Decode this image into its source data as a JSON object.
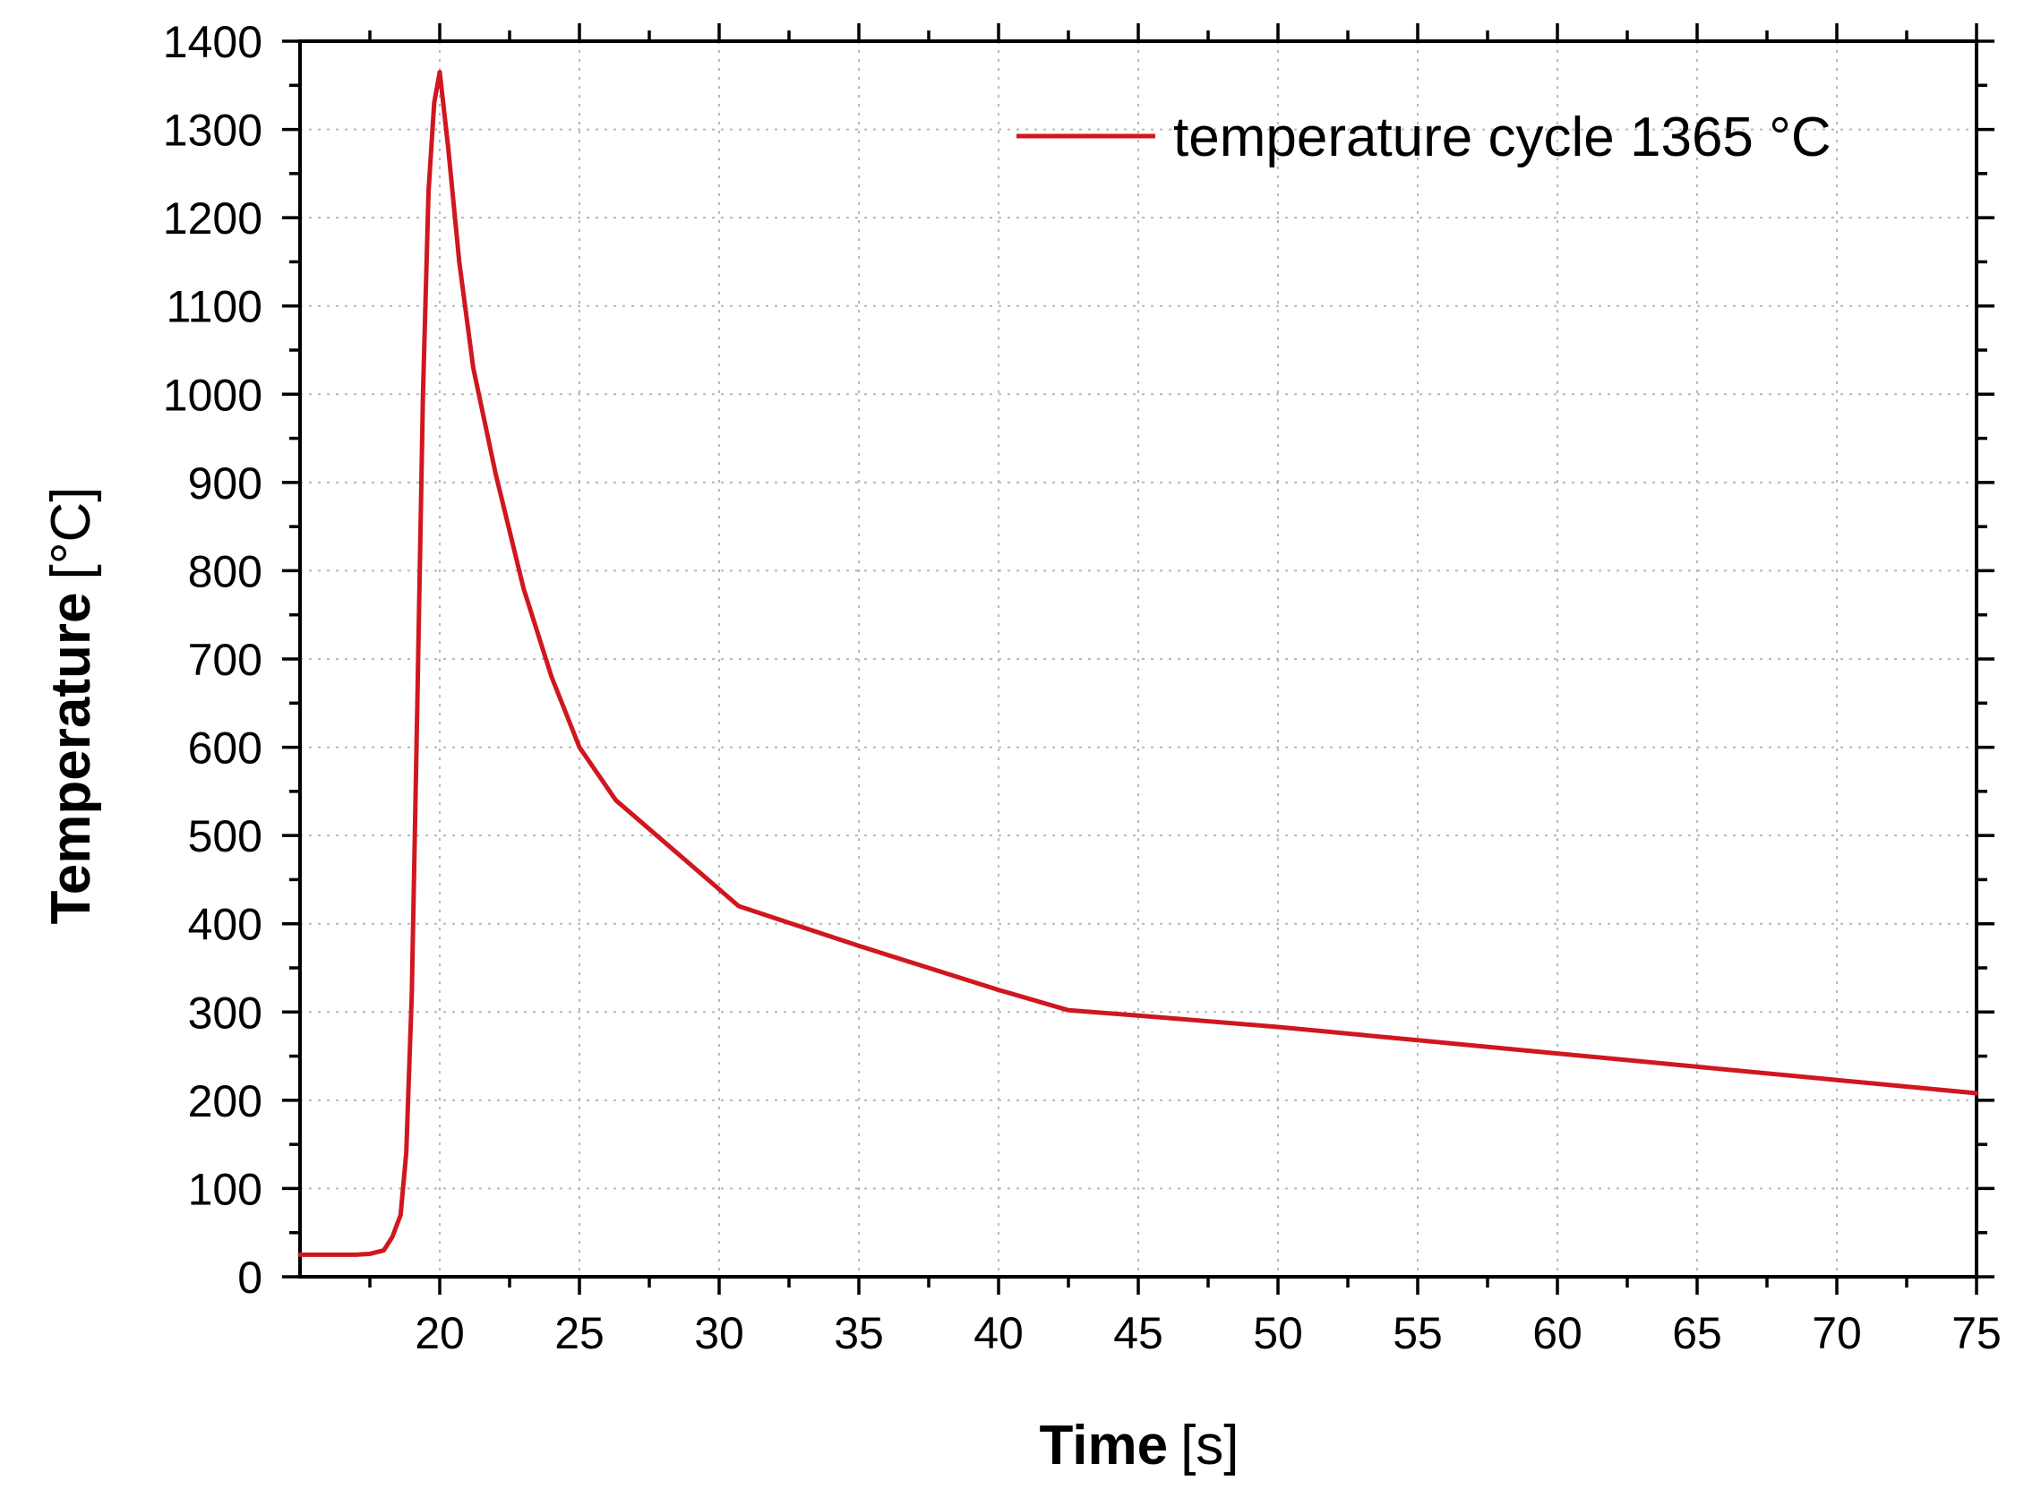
{
  "chart_data": {
    "type": "line",
    "title": "",
    "xlabel_bold": "Time",
    "xlabel_unit": "[s]",
    "ylabel_bold": "Temperature",
    "ylabel_unit": "[°C]",
    "xlim": [
      15,
      75
    ],
    "ylim": [
      0,
      1400
    ],
    "xticks": [
      20,
      25,
      30,
      35,
      40,
      45,
      50,
      55,
      60,
      65,
      70,
      75
    ],
    "yticks": [
      0,
      100,
      200,
      300,
      400,
      500,
      600,
      700,
      800,
      900,
      1000,
      1100,
      1200,
      1300,
      1400
    ],
    "grid": true,
    "legend_position": "top-right",
    "line_color": "#d0171f",
    "series": [
      {
        "name": "temperature cycle 1365 °C",
        "x": [
          15,
          16,
          17,
          17.5,
          18,
          18.3,
          18.6,
          18.8,
          19.0,
          19.2,
          19.4,
          19.6,
          19.8,
          20.0,
          20.3,
          20.7,
          21.2,
          22.0,
          23.0,
          24.0,
          25.0,
          26.3,
          30.7,
          35.0,
          40.0,
          42.5,
          45.0,
          50.0,
          55.0,
          60.0,
          65.0,
          70.0,
          75.0
        ],
        "y": [
          25,
          25,
          25,
          26,
          30,
          45,
          70,
          140,
          320,
          650,
          1000,
          1230,
          1330,
          1365,
          1280,
          1150,
          1030,
          910,
          780,
          680,
          600,
          540,
          420,
          375,
          325,
          302,
          296,
          283,
          268,
          253,
          238,
          223,
          208
        ]
      }
    ]
  }
}
